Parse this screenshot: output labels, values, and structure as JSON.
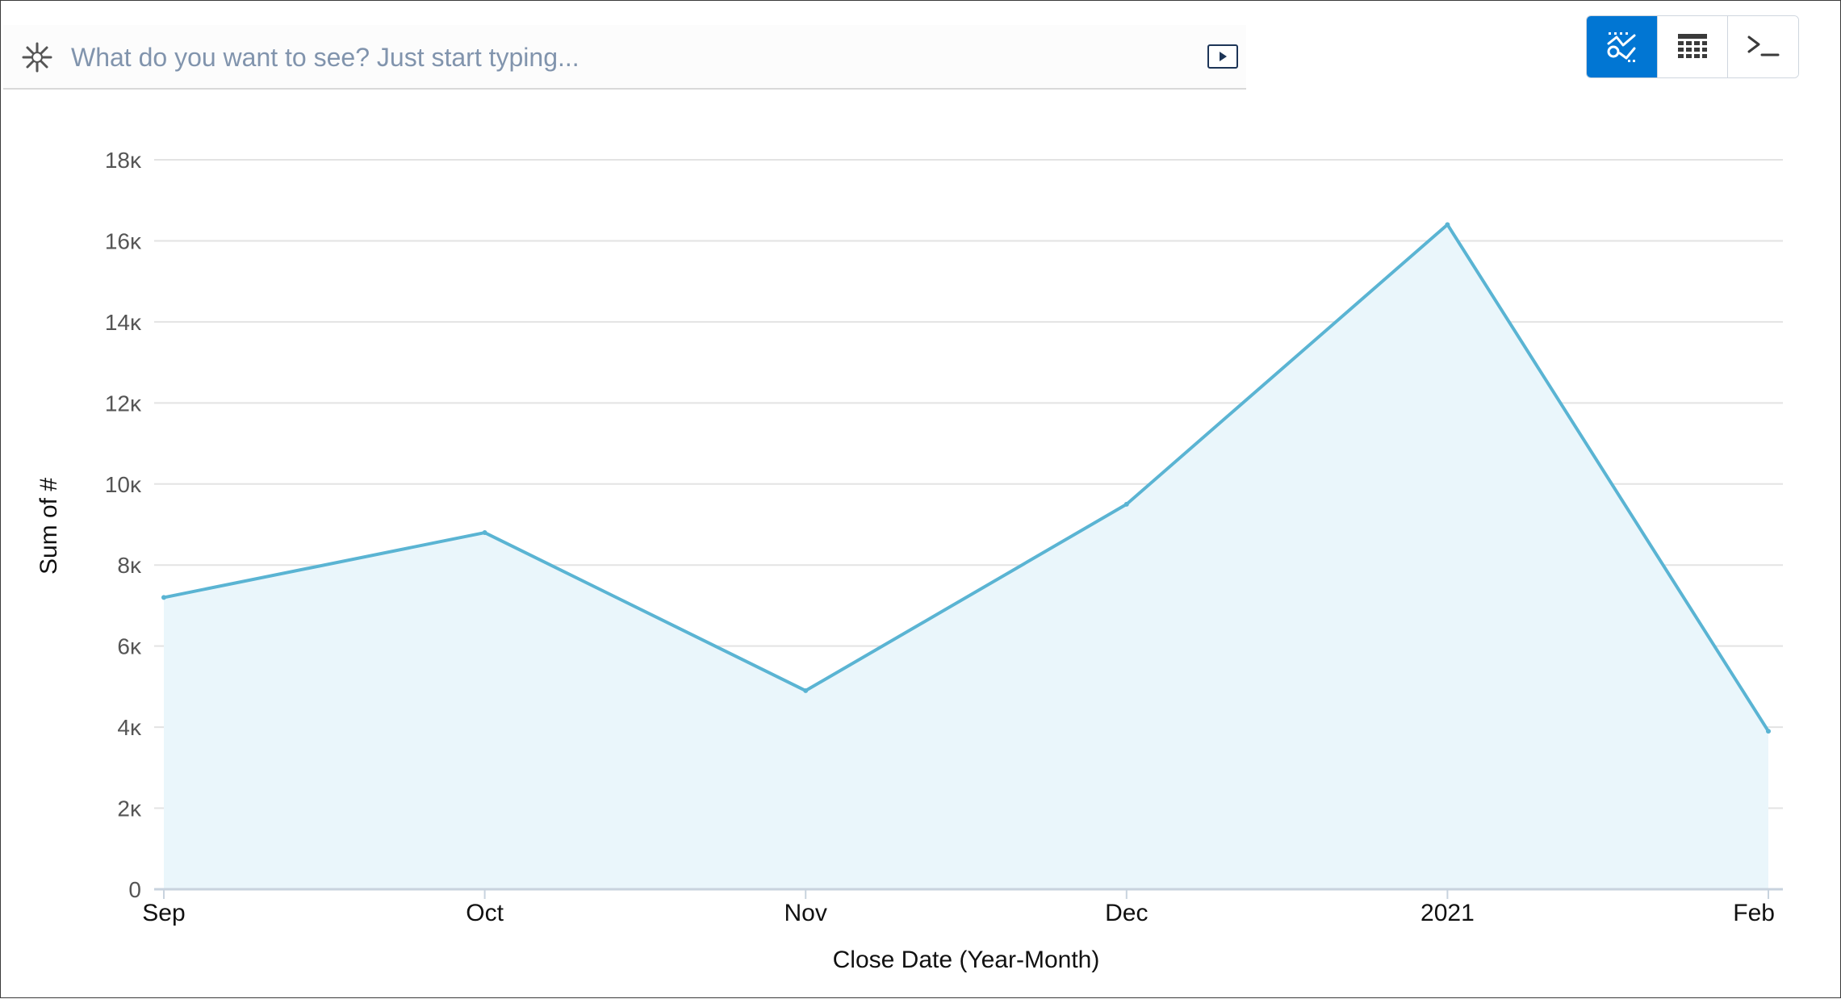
{
  "search": {
    "placeholder": "What do you want to see? Just start typing..."
  },
  "view_toggle": {
    "buttons": [
      {
        "icon": "chart-icon",
        "active": true
      },
      {
        "icon": "table-icon",
        "active": false
      },
      {
        "icon": "terminal-icon",
        "active": false
      }
    ]
  },
  "colors": {
    "accent": "#0176d3",
    "line": "#5ab4d3",
    "area": "#eaf6fb"
  },
  "chart_data": {
    "type": "area",
    "categories": [
      "Sep",
      "Oct",
      "Nov",
      "Dec",
      "2021",
      "Feb"
    ],
    "values": [
      7200,
      8800,
      4900,
      9500,
      16400,
      3900
    ],
    "xlabel": "Close Date (Year-Month)",
    "ylabel": "Sum of #",
    "ylim": [
      0,
      18000
    ],
    "y_ticks": [
      {
        "value": 0,
        "label": "0"
      },
      {
        "value": 2000,
        "label": "2ĸ"
      },
      {
        "value": 4000,
        "label": "4ĸ"
      },
      {
        "value": 6000,
        "label": "6ĸ"
      },
      {
        "value": 8000,
        "label": "8ĸ"
      },
      {
        "value": 10000,
        "label": "10ĸ"
      },
      {
        "value": 12000,
        "label": "12ĸ"
      },
      {
        "value": 14000,
        "label": "14ĸ"
      },
      {
        "value": 16000,
        "label": "16ĸ"
      },
      {
        "value": 18000,
        "label": "18ĸ"
      }
    ],
    "grid": true
  }
}
